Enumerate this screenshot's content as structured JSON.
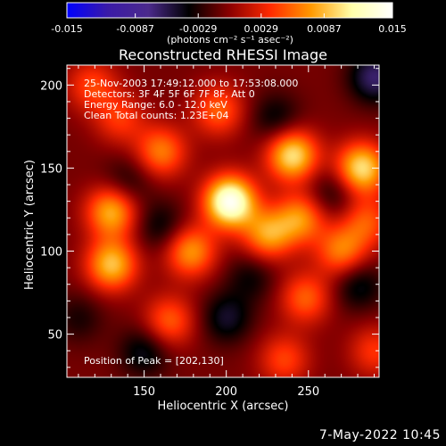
{
  "colorbar": {
    "tick_labels": [
      "-0.015",
      "-0.0087",
      "-0.0029",
      "0.0029",
      "0.0087",
      "0.015"
    ],
    "unit_label": "(photons cm⁻² s⁻¹ asec⁻²)",
    "range": [
      -0.015,
      0.015
    ],
    "colors": [
      "#0000ff",
      "#3a1aa8",
      "#4b2a8c",
      "#000000",
      "#8b0000",
      "#ff2a00",
      "#ff9900",
      "#ffffaa",
      "#ffffff"
    ]
  },
  "chart_data": {
    "type": "heatmap",
    "title": "Reconstructed RHESSI Image",
    "xlabel": "Heliocentric X (arcsec)",
    "ylabel": "Heliocentric Y (arcsec)",
    "xlim": [
      103,
      293
    ],
    "ylim": [
      24,
      212
    ],
    "xticks": [
      150,
      200,
      250
    ],
    "yticks": [
      50,
      100,
      150,
      200
    ],
    "annotations": [
      "25-Nov-2003 17:49:12.000 to 17:53:08.000",
      "Detectors: 3F 4F 5F 6F 7F 8F, Att 0",
      "Energy Range: 6.0 - 12.0 keV",
      "Clean     Total counts: 1.23E+04"
    ],
    "peak_label": "Position of Peak = [202,130]",
    "peak": [
      202,
      130
    ],
    "sources": [
      {
        "x": 202,
        "y": 130,
        "value": 0.015
      },
      {
        "x": 240,
        "y": 158,
        "value": 0.011
      },
      {
        "x": 282,
        "y": 150,
        "value": 0.011
      },
      {
        "x": 130,
        "y": 92,
        "value": 0.0095
      },
      {
        "x": 130,
        "y": 124,
        "value": 0.009
      },
      {
        "x": 178,
        "y": 100,
        "value": 0.008
      },
      {
        "x": 225,
        "y": 110,
        "value": 0.008
      },
      {
        "x": 245,
        "y": 120,
        "value": 0.0075
      },
      {
        "x": 160,
        "y": 160,
        "value": 0.007
      },
      {
        "x": 270,
        "y": 100,
        "value": 0.007
      },
      {
        "x": 195,
        "y": 185,
        "value": 0.006
      },
      {
        "x": 248,
        "y": 72,
        "value": 0.006
      },
      {
        "x": 165,
        "y": 58,
        "value": 0.006
      },
      {
        "x": 285,
        "y": 118,
        "value": 0.0055
      },
      {
        "x": 235,
        "y": 35,
        "value": 0.005
      },
      {
        "x": 118,
        "y": 200,
        "value": 0.005
      },
      {
        "x": 135,
        "y": 180,
        "value": 0.0045
      },
      {
        "x": 290,
        "y": 40,
        "value": 0.0045
      },
      {
        "x": 110,
        "y": 60,
        "value": -0.0025
      },
      {
        "x": 150,
        "y": 40,
        "value": -0.004
      },
      {
        "x": 200,
        "y": 60,
        "value": -0.0042
      },
      {
        "x": 160,
        "y": 115,
        "value": -0.0035
      },
      {
        "x": 230,
        "y": 180,
        "value": -0.0035
      },
      {
        "x": 265,
        "y": 135,
        "value": -0.0033
      },
      {
        "x": 280,
        "y": 80,
        "value": -0.004
      },
      {
        "x": 140,
        "y": 142,
        "value": -0.003
      },
      {
        "x": 290,
        "y": 205,
        "value": -0.006
      },
      {
        "x": 215,
        "y": 85,
        "value": -0.003
      }
    ]
  },
  "footer": {
    "date": "7-May-2022 10:45"
  }
}
